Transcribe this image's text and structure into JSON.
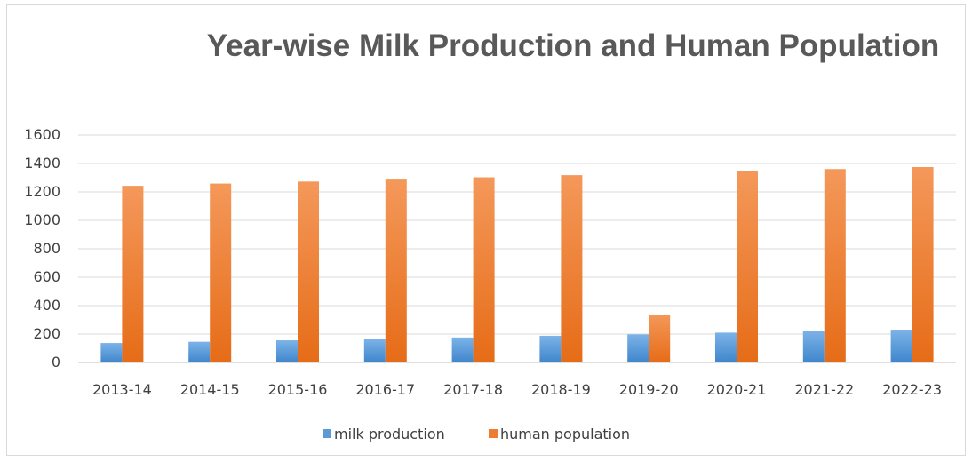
{
  "chart_data": {
    "type": "bar",
    "title": "Year-wise Milk Production and Human Population",
    "xlabel": "",
    "ylabel": "",
    "ylim": [
      0,
      1600
    ],
    "yticks": [
      0,
      200,
      400,
      600,
      800,
      1000,
      1200,
      1400,
      1600
    ],
    "grid": true,
    "legend_position": "bottom",
    "categories": [
      "2013-14",
      "2014-15",
      "2015-16",
      "2016-17",
      "2017-18",
      "2018-19",
      "2019-20",
      "2020-21",
      "2021-22",
      "2022-23"
    ],
    "series": [
      {
        "name": "milk production",
        "color": "#5b9bd5",
        "values": [
          137,
          146,
          156,
          166,
          176,
          188,
          198,
          210,
          222,
          231
        ]
      },
      {
        "name": "human population",
        "color": "#ed7d31",
        "values": [
          1243,
          1259,
          1273,
          1287,
          1303,
          1318,
          336,
          1347,
          1361,
          1375
        ]
      }
    ]
  }
}
